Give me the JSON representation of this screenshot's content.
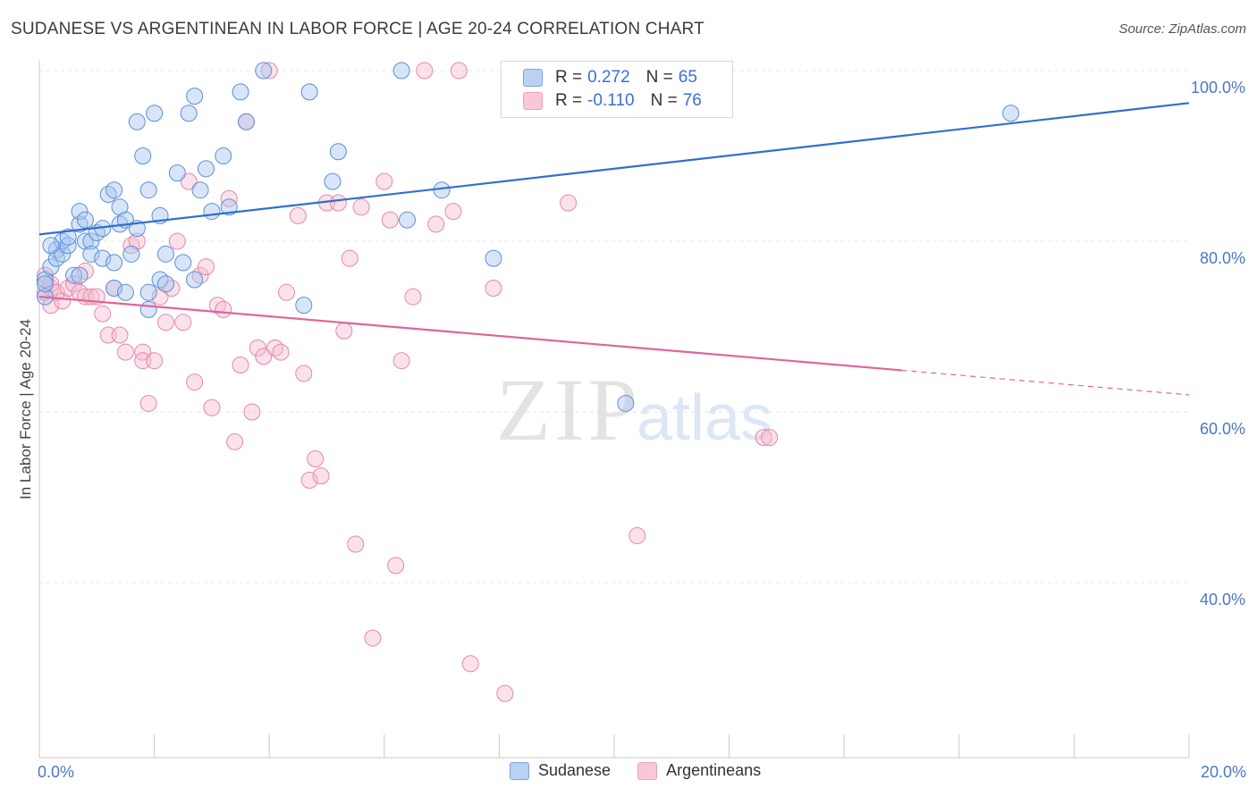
{
  "header": {
    "title": "SUDANESE VS ARGENTINEAN IN LABOR FORCE | AGE 20-24 CORRELATION CHART",
    "source": "Source: ZipAtlas.com"
  },
  "watermark": {
    "zip": "ZIP",
    "atlas": "atlas"
  },
  "legend": {
    "rows": [
      {
        "r_label": "R =",
        "r_value": "0.272",
        "n_label": "N =",
        "n_value": "65"
      },
      {
        "r_label": "R =",
        "r_value": "-0.110",
        "n_label": "N =",
        "n_value": "76"
      }
    ],
    "bottom": [
      "Sudanese",
      "Argentineans"
    ]
  },
  "colors": {
    "sudanese_fill": "#a9c6ef",
    "sudanese_stroke": "#5b8fd6",
    "sudanese_line": "#2f6fd0",
    "argentinean_fill": "#f6bcd0",
    "argentinean_stroke": "#e389aa",
    "argentinean_line": "#e0649a",
    "tick_text": "#4a77c9",
    "grid": "#e6e6e6"
  },
  "chart_data": {
    "type": "scatter",
    "title": "SUDANESE VS ARGENTINEAN IN LABOR FORCE | AGE 20-24 CORRELATION CHART",
    "xlabel": "",
    "ylabel": "In Labor Force | Age 20-24",
    "xlim": [
      0,
      20
    ],
    "ylim": [
      20,
      102
    ],
    "x_tick_labels": [
      {
        "value": 0,
        "label": "0.0%"
      },
      {
        "value": 20,
        "label": "20.0%"
      }
    ],
    "y_tick_labels": [
      {
        "value": 100,
        "label": "100.0%"
      },
      {
        "value": 80,
        "label": "80.0%"
      },
      {
        "value": 60,
        "label": "60.0%"
      },
      {
        "value": 40,
        "label": "40.0%"
      }
    ],
    "grid": true,
    "legend_position": "top-center",
    "series": [
      {
        "name": "Sudanese",
        "r": 0.272,
        "n": 65,
        "trend": {
          "x": [
            0,
            20
          ],
          "y": [
            80.8,
            96.2
          ],
          "dashed_from": null
        },
        "points": [
          [
            0.1,
            75.5
          ],
          [
            0.2,
            77.0
          ],
          [
            0.3,
            79.0
          ],
          [
            0.3,
            78.0
          ],
          [
            0.4,
            78.5
          ],
          [
            0.4,
            80.0
          ],
          [
            0.5,
            79.5
          ],
          [
            0.5,
            80.5
          ],
          [
            0.6,
            76.0
          ],
          [
            0.7,
            76.0
          ],
          [
            0.7,
            82.0
          ],
          [
            0.7,
            83.5
          ],
          [
            0.8,
            82.5
          ],
          [
            0.8,
            80.0
          ],
          [
            0.9,
            80.0
          ],
          [
            0.9,
            78.5
          ],
          [
            1.0,
            81.0
          ],
          [
            1.1,
            81.5
          ],
          [
            1.1,
            78.0
          ],
          [
            1.2,
            85.5
          ],
          [
            1.3,
            86.0
          ],
          [
            1.3,
            77.5
          ],
          [
            1.3,
            74.5
          ],
          [
            1.4,
            84.0
          ],
          [
            1.4,
            82.0
          ],
          [
            1.5,
            82.5
          ],
          [
            1.5,
            74.0
          ],
          [
            1.6,
            78.5
          ],
          [
            1.7,
            94.0
          ],
          [
            1.7,
            81.5
          ],
          [
            1.8,
            90.0
          ],
          [
            1.9,
            74.0
          ],
          [
            1.9,
            72.0
          ],
          [
            1.9,
            86.0
          ],
          [
            2.0,
            95.0
          ],
          [
            2.1,
            83.0
          ],
          [
            2.1,
            75.5
          ],
          [
            2.2,
            78.5
          ],
          [
            2.2,
            75.0
          ],
          [
            2.4,
            88.0
          ],
          [
            2.5,
            77.5
          ],
          [
            2.6,
            95.0
          ],
          [
            2.7,
            97.0
          ],
          [
            2.7,
            75.5
          ],
          [
            2.8,
            86.0
          ],
          [
            2.9,
            88.5
          ],
          [
            3.0,
            83.5
          ],
          [
            3.2,
            90.0
          ],
          [
            3.3,
            84.0
          ],
          [
            3.5,
            97.5
          ],
          [
            3.6,
            94.0
          ],
          [
            3.9,
            100.0
          ],
          [
            4.6,
            72.5
          ],
          [
            4.7,
            97.5
          ],
          [
            5.1,
            87.0
          ],
          [
            5.2,
            90.5
          ],
          [
            6.3,
            100.0
          ],
          [
            6.4,
            82.5
          ],
          [
            7.0,
            86.0
          ],
          [
            7.9,
            78.0
          ],
          [
            10.2,
            61.0
          ],
          [
            16.9,
            95.0
          ],
          [
            0.1,
            73.5
          ],
          [
            0.2,
            79.5
          ],
          [
            0.1,
            75.0
          ]
        ]
      },
      {
        "name": "Argentineans",
        "r": -0.11,
        "n": 76,
        "trend": {
          "x": [
            0,
            20
          ],
          "y": [
            73.5,
            62.0
          ],
          "dashed_from": 15
        },
        "points": [
          [
            0.1,
            74.0
          ],
          [
            0.1,
            76.0
          ],
          [
            0.2,
            74.5
          ],
          [
            0.2,
            72.5
          ],
          [
            0.2,
            75.0
          ],
          [
            0.3,
            74.0
          ],
          [
            0.4,
            73.0
          ],
          [
            0.5,
            74.5
          ],
          [
            0.6,
            75.0
          ],
          [
            0.7,
            74.0
          ],
          [
            0.8,
            73.5
          ],
          [
            0.8,
            76.5
          ],
          [
            0.9,
            73.5
          ],
          [
            1.0,
            73.5
          ],
          [
            1.1,
            71.5
          ],
          [
            1.2,
            69.0
          ],
          [
            1.3,
            74.5
          ],
          [
            1.4,
            69.0
          ],
          [
            1.5,
            67.0
          ],
          [
            1.6,
            79.5
          ],
          [
            1.7,
            80.0
          ],
          [
            1.8,
            67.0
          ],
          [
            1.8,
            66.0
          ],
          [
            1.9,
            61.0
          ],
          [
            2.0,
            66.0
          ],
          [
            2.1,
            73.5
          ],
          [
            2.2,
            70.5
          ],
          [
            2.3,
            74.5
          ],
          [
            2.4,
            80.0
          ],
          [
            2.5,
            70.5
          ],
          [
            2.6,
            87.0
          ],
          [
            2.7,
            63.5
          ],
          [
            2.8,
            76.0
          ],
          [
            2.9,
            77.0
          ],
          [
            3.0,
            60.5
          ],
          [
            3.1,
            72.5
          ],
          [
            3.2,
            72.0
          ],
          [
            3.3,
            85.0
          ],
          [
            3.4,
            56.5
          ],
          [
            3.5,
            65.5
          ],
          [
            3.6,
            94.0
          ],
          [
            3.7,
            60.0
          ],
          [
            3.8,
            67.5
          ],
          [
            3.9,
            66.5
          ],
          [
            4.0,
            100.0
          ],
          [
            4.1,
            67.5
          ],
          [
            4.2,
            67.0
          ],
          [
            4.3,
            74.0
          ],
          [
            4.5,
            83.0
          ],
          [
            4.6,
            64.5
          ],
          [
            4.7,
            52.0
          ],
          [
            4.8,
            54.5
          ],
          [
            4.9,
            52.5
          ],
          [
            5.0,
            84.5
          ],
          [
            5.2,
            84.5
          ],
          [
            5.3,
            69.5
          ],
          [
            5.4,
            78.0
          ],
          [
            5.5,
            44.5
          ],
          [
            5.6,
            84.0
          ],
          [
            5.8,
            33.5
          ],
          [
            6.0,
            87.0
          ],
          [
            6.1,
            82.5
          ],
          [
            6.2,
            42.0
          ],
          [
            6.3,
            66.0
          ],
          [
            6.5,
            73.5
          ],
          [
            6.7,
            100.0
          ],
          [
            6.9,
            82.0
          ],
          [
            7.2,
            83.5
          ],
          [
            7.3,
            100.0
          ],
          [
            7.5,
            30.5
          ],
          [
            7.9,
            74.5
          ],
          [
            8.1,
            27.0
          ],
          [
            9.2,
            84.5
          ],
          [
            10.4,
            45.5
          ],
          [
            12.6,
            57.0
          ],
          [
            12.7,
            57.0
          ]
        ]
      }
    ]
  }
}
